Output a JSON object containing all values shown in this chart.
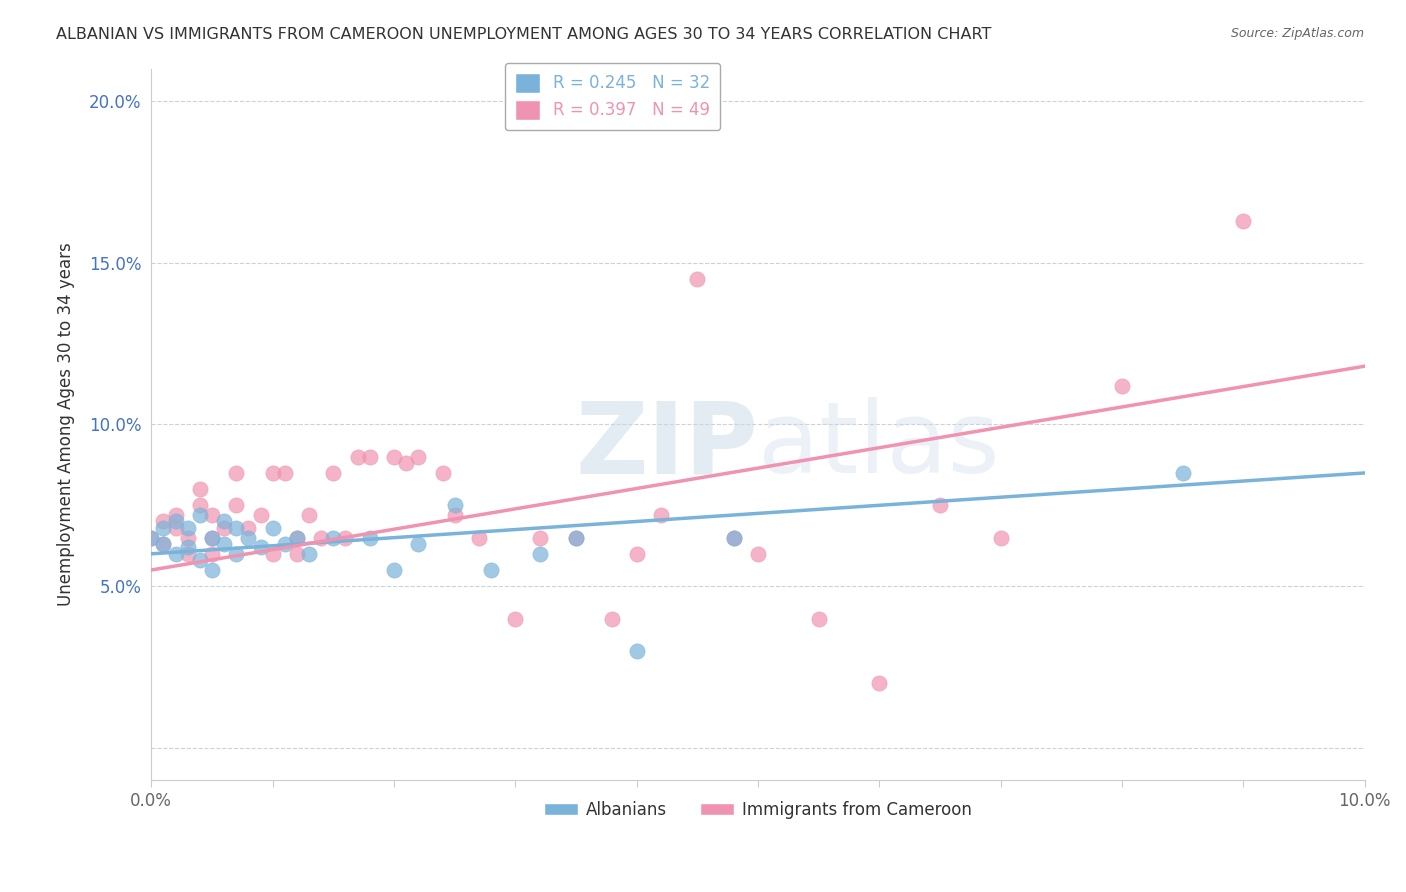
{
  "title": "ALBANIAN VS IMMIGRANTS FROM CAMEROON UNEMPLOYMENT AMONG AGES 30 TO 34 YEARS CORRELATION CHART",
  "source": "Source: ZipAtlas.com",
  "ylabel": "Unemployment Among Ages 30 to 34 years",
  "xlabel": "",
  "xlim": [
    0.0,
    0.1
  ],
  "ylim": [
    -0.01,
    0.21
  ],
  "xticks": [
    0.0,
    0.01,
    0.02,
    0.03,
    0.04,
    0.05,
    0.06,
    0.07,
    0.08,
    0.09,
    0.1
  ],
  "yticks": [
    0.0,
    0.05,
    0.1,
    0.15,
    0.2
  ],
  "watermark": "ZIPatlas",
  "blue_color": "#7ab3d9",
  "pink_color": "#f093b0",
  "blue_r": "0.245",
  "blue_n": "32",
  "pink_r": "0.397",
  "pink_n": "49",
  "background_color": "#ffffff",
  "grid_color": "#cccccc",
  "title_color": "#333333",
  "axis_color": "#666666",
  "blue_scatter_x": [
    0.0,
    0.001,
    0.001,
    0.002,
    0.002,
    0.003,
    0.003,
    0.004,
    0.004,
    0.005,
    0.005,
    0.006,
    0.006,
    0.007,
    0.007,
    0.008,
    0.009,
    0.01,
    0.011,
    0.012,
    0.013,
    0.015,
    0.018,
    0.02,
    0.022,
    0.025,
    0.028,
    0.032,
    0.035,
    0.04,
    0.048,
    0.085
  ],
  "blue_scatter_y": [
    0.065,
    0.068,
    0.063,
    0.07,
    0.06,
    0.068,
    0.062,
    0.072,
    0.058,
    0.065,
    0.055,
    0.07,
    0.063,
    0.068,
    0.06,
    0.065,
    0.062,
    0.068,
    0.063,
    0.065,
    0.06,
    0.065,
    0.065,
    0.055,
    0.063,
    0.075,
    0.055,
    0.06,
    0.065,
    0.03,
    0.065,
    0.085
  ],
  "pink_scatter_x": [
    0.0,
    0.001,
    0.001,
    0.002,
    0.002,
    0.003,
    0.003,
    0.004,
    0.004,
    0.005,
    0.005,
    0.005,
    0.006,
    0.007,
    0.007,
    0.008,
    0.009,
    0.01,
    0.01,
    0.011,
    0.012,
    0.012,
    0.013,
    0.014,
    0.015,
    0.016,
    0.017,
    0.018,
    0.02,
    0.021,
    0.022,
    0.024,
    0.025,
    0.027,
    0.03,
    0.032,
    0.035,
    0.038,
    0.04,
    0.042,
    0.045,
    0.048,
    0.05,
    0.055,
    0.06,
    0.065,
    0.07,
    0.08,
    0.09
  ],
  "pink_scatter_y": [
    0.065,
    0.07,
    0.063,
    0.072,
    0.068,
    0.065,
    0.06,
    0.075,
    0.08,
    0.065,
    0.072,
    0.06,
    0.068,
    0.085,
    0.075,
    0.068,
    0.072,
    0.085,
    0.06,
    0.085,
    0.065,
    0.06,
    0.072,
    0.065,
    0.085,
    0.065,
    0.09,
    0.09,
    0.09,
    0.088,
    0.09,
    0.085,
    0.072,
    0.065,
    0.04,
    0.065,
    0.065,
    0.04,
    0.06,
    0.072,
    0.145,
    0.065,
    0.06,
    0.04,
    0.02,
    0.075,
    0.065,
    0.112,
    0.163
  ],
  "blue_trend_x0": 0.0,
  "blue_trend_y0": 0.06,
  "blue_trend_x1": 0.1,
  "blue_trend_y1": 0.085,
  "pink_trend_x0": 0.0,
  "pink_trend_y0": 0.055,
  "pink_trend_x1": 0.1,
  "pink_trend_y1": 0.118
}
